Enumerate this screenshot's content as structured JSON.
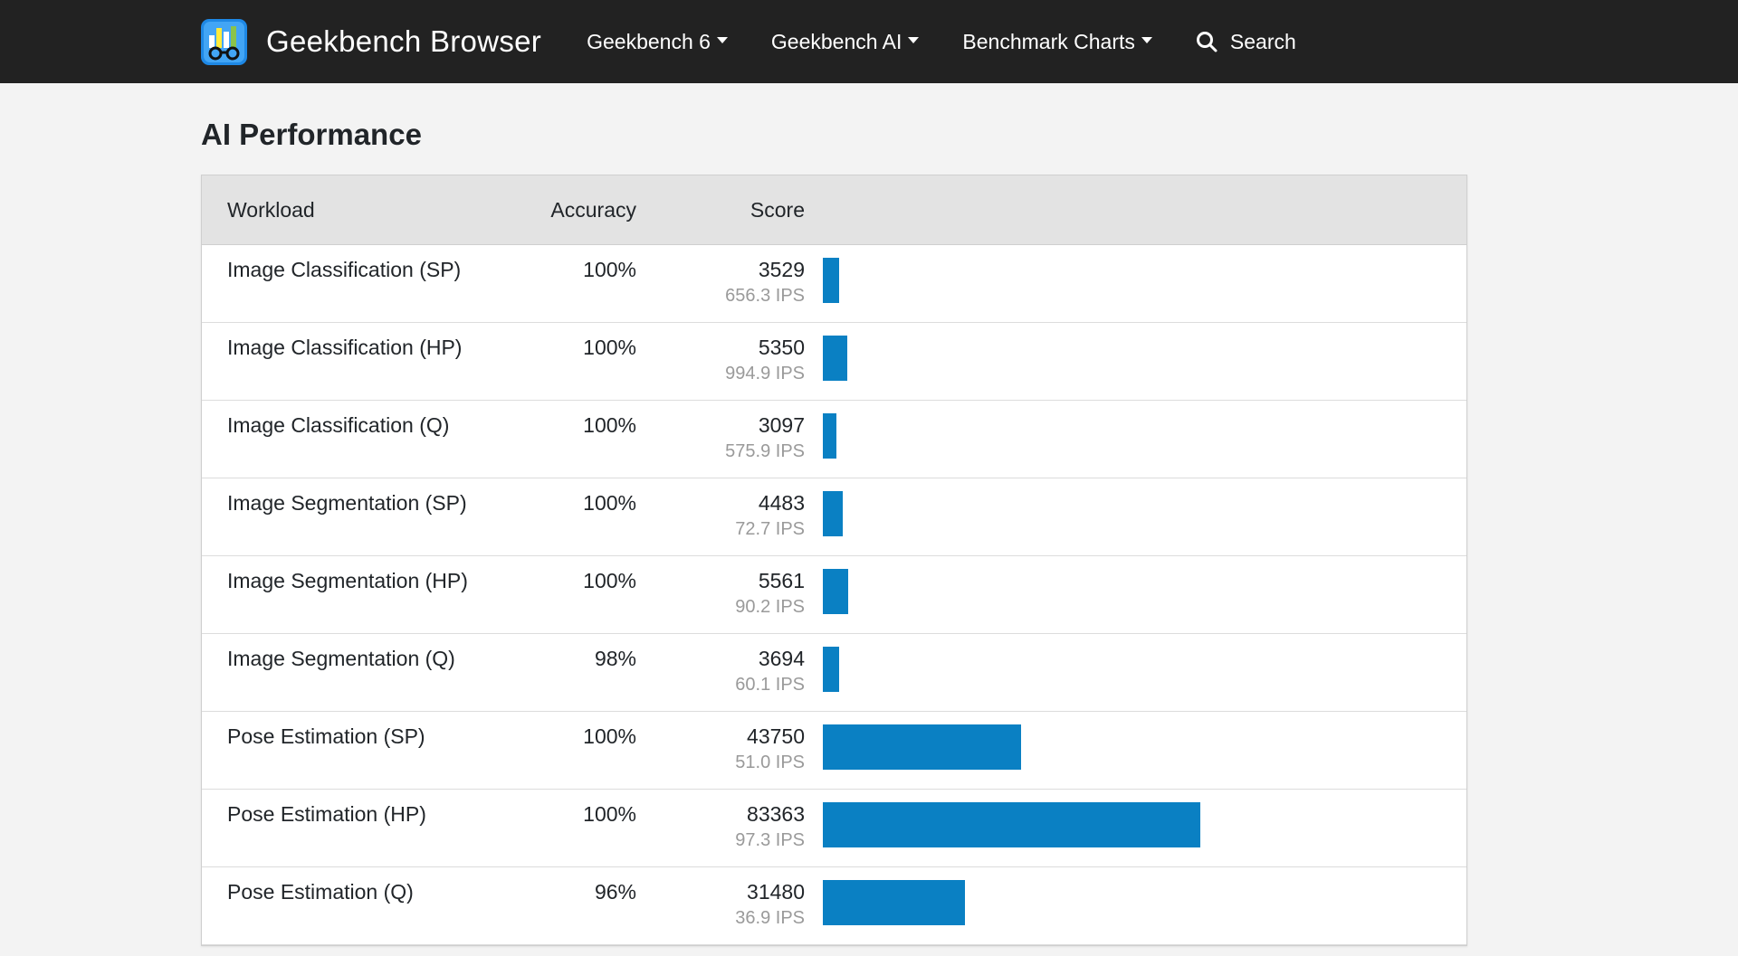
{
  "nav": {
    "brand": "Geekbench Browser",
    "items": [
      {
        "label": "Geekbench 6"
      },
      {
        "label": "Geekbench AI"
      },
      {
        "label": "Benchmark Charts"
      }
    ],
    "search_label": "Search"
  },
  "page": {
    "title": "AI Performance"
  },
  "table": {
    "headers": {
      "workload": "Workload",
      "accuracy": "Accuracy",
      "score": "Score"
    },
    "max_score": 100000,
    "rows": [
      {
        "workload": "Image Classification (SP)",
        "accuracy": "100%",
        "score": "3529",
        "score_num": 3529,
        "ips": "656.3 IPS"
      },
      {
        "workload": "Image Classification (HP)",
        "accuracy": "100%",
        "score": "5350",
        "score_num": 5350,
        "ips": "994.9 IPS"
      },
      {
        "workload": "Image Classification (Q)",
        "accuracy": "100%",
        "score": "3097",
        "score_num": 3097,
        "ips": "575.9 IPS"
      },
      {
        "workload": "Image Segmentation (SP)",
        "accuracy": "100%",
        "score": "4483",
        "score_num": 4483,
        "ips": "72.7 IPS"
      },
      {
        "workload": "Image Segmentation (HP)",
        "accuracy": "100%",
        "score": "5561",
        "score_num": 5561,
        "ips": "90.2 IPS"
      },
      {
        "workload": "Image Segmentation (Q)",
        "accuracy": "98%",
        "score": "3694",
        "score_num": 3694,
        "ips": "60.1 IPS"
      },
      {
        "workload": "Pose Estimation (SP)",
        "accuracy": "100%",
        "score": "43750",
        "score_num": 43750,
        "ips": "51.0 IPS"
      },
      {
        "workload": "Pose Estimation (HP)",
        "accuracy": "100%",
        "score": "83363",
        "score_num": 83363,
        "ips": "97.3 IPS"
      },
      {
        "workload": "Pose Estimation (Q)",
        "accuracy": "96%",
        "score": "31480",
        "score_num": 31480,
        "ips": "36.9 IPS"
      }
    ]
  },
  "colors": {
    "bar": "#0a80c3",
    "navbar": "#222222"
  }
}
